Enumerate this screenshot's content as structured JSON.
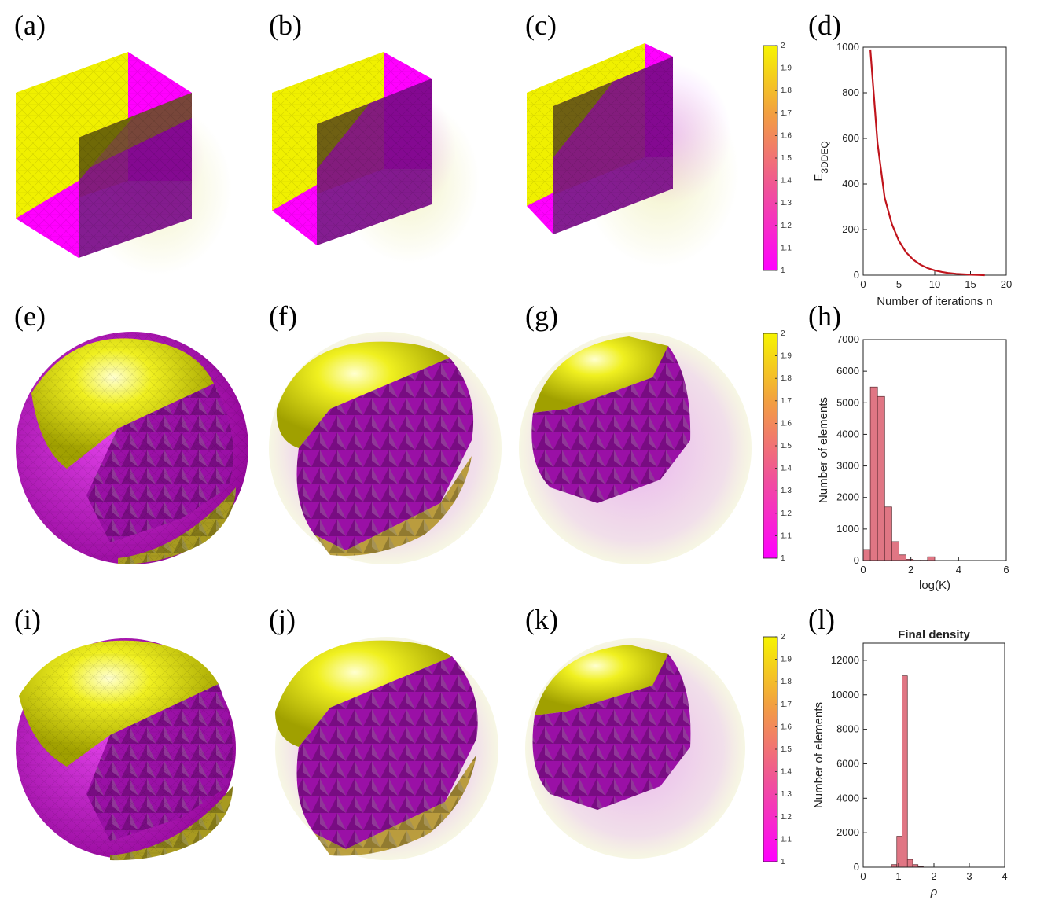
{
  "panel_labels": [
    "(a)",
    "(b)",
    "(c)",
    "(d)",
    "(e)",
    "(f)",
    "(g)",
    "(h)",
    "(i)",
    "(j)",
    "(k)",
    "(l)"
  ],
  "colors": {
    "yellow": "#f0f000",
    "magenta": "#ff00ff",
    "bar_fill": "#e07684",
    "line": "#c0141c",
    "axis": "#222222"
  },
  "colorbar": {
    "ticks": [
      "2",
      "1.9",
      "1.8",
      "1.7",
      "1.6",
      "1.5",
      "1.4",
      "1.3",
      "1.2",
      "1.1",
      "1"
    ],
    "min": 1,
    "max": 2
  },
  "chart_data": [
    {
      "id": "d",
      "type": "line",
      "title": "",
      "xlabel": "Number of iterations n",
      "ylabel": "E",
      "ylabel_sub": "3DDEQ",
      "xlim": [
        0,
        20
      ],
      "ylim": [
        0,
        1000
      ],
      "xticks": [
        "0",
        "5",
        "10",
        "15",
        "20"
      ],
      "yticks": [
        "0",
        "200",
        "400",
        "600",
        "800",
        "1000"
      ],
      "x": [
        1,
        2,
        3,
        4,
        5,
        6,
        7,
        8,
        9,
        10,
        11,
        12,
        13,
        14,
        15,
        16,
        17
      ],
      "y": [
        990,
        580,
        340,
        225,
        150,
        100,
        68,
        46,
        31,
        21,
        14,
        9,
        6,
        4,
        2,
        1,
        0
      ]
    },
    {
      "id": "h",
      "type": "bar",
      "title": "",
      "xlabel": "log(K)",
      "ylabel": "Number of elements",
      "xlim": [
        0,
        6
      ],
      "ylim": [
        0,
        7000
      ],
      "xticks": [
        "0",
        "2",
        "4",
        "6"
      ],
      "yticks": [
        "0",
        "1000",
        "2000",
        "3000",
        "4000",
        "5000",
        "6000",
        "7000"
      ],
      "bin_width": 0.3,
      "bin_start": 0,
      "values": [
        350,
        5500,
        5200,
        1700,
        600,
        180,
        40,
        10,
        10,
        120,
        0,
        0,
        0,
        0,
        0,
        0,
        0,
        0,
        0,
        0
      ]
    },
    {
      "id": "l",
      "type": "bar",
      "title": "Final density",
      "xlabel": "ρ",
      "ylabel": "Number of elements",
      "xlim": [
        0,
        4
      ],
      "ylim": [
        0,
        13000
      ],
      "xticks": [
        "0",
        "1",
        "2",
        "3",
        "4"
      ],
      "yticks": [
        "0",
        "2000",
        "4000",
        "6000",
        "8000",
        "10000",
        "12000"
      ],
      "bin_width": 0.15,
      "bin_start": 0.8,
      "values": [
        150,
        1800,
        11100,
        450,
        150,
        30
      ]
    }
  ]
}
